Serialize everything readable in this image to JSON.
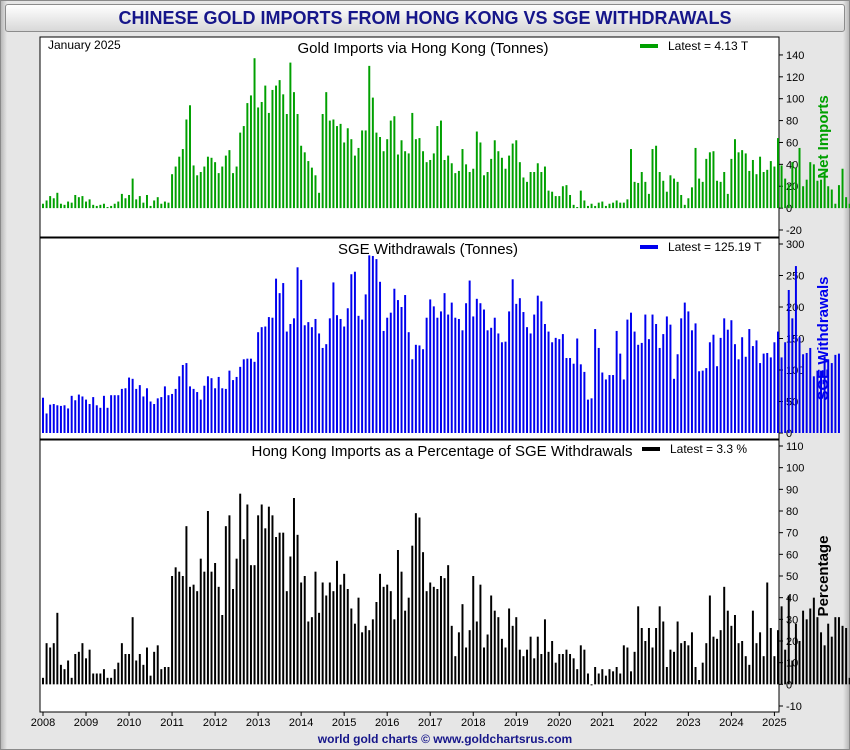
{
  "page": {
    "title": "CHINESE GOLD IMPORTS FROM HONG KONG VS SGE WITHDRAWALS",
    "footer": "world gold charts © www.goldchartsrus.com",
    "date_label": "January 2025"
  },
  "chart_data": [
    {
      "type": "bar",
      "title": "Gold Imports via Hong Kong (Tonnes)",
      "ylabel": "Net Imports",
      "legend_text": "Latest  = 4.13 T",
      "color": "#00a000",
      "legend_color": "#00a000",
      "ylim": [
        -20,
        150
      ],
      "yticks": [
        -20,
        0,
        20,
        40,
        60,
        80,
        100,
        120,
        140
      ],
      "x_start": "2008-01",
      "values": [
        4,
        7,
        11,
        9,
        14,
        4,
        3,
        6,
        5,
        12,
        10,
        11,
        6,
        8,
        3,
        2,
        3,
        4,
        1,
        2,
        4,
        6,
        13,
        9,
        12,
        27,
        8,
        11,
        5,
        12,
        2,
        7,
        10,
        4,
        6,
        5,
        31,
        38,
        47,
        54,
        81,
        94,
        39,
        30,
        33,
        38,
        47,
        46,
        42,
        32,
        38,
        48,
        53,
        32,
        38,
        69,
        75,
        96,
        103,
        137,
        92,
        97,
        112,
        87,
        108,
        112,
        117,
        104,
        86,
        133,
        106,
        86,
        57,
        51,
        43,
        37,
        30,
        14,
        86,
        106,
        80,
        81,
        75,
        77,
        60,
        73,
        63,
        48,
        55,
        71,
        71,
        130,
        101,
        69,
        65,
        52,
        63,
        80,
        84,
        49,
        62,
        52,
        50,
        87,
        63,
        64,
        52,
        42,
        44,
        50,
        75,
        80,
        44,
        48,
        41,
        32,
        34,
        54,
        40,
        33,
        36,
        70,
        60,
        30,
        33,
        45,
        62,
        52,
        46,
        36,
        48,
        59,
        62,
        42,
        28,
        24,
        33,
        33,
        41,
        33,
        38,
        16,
        15,
        11,
        11,
        20,
        21,
        12,
        3,
        1,
        16,
        7,
        2,
        4,
        2,
        5,
        6,
        2,
        4,
        5,
        7,
        5,
        5,
        8,
        54,
        24,
        23,
        33,
        24,
        13,
        54,
        57,
        33,
        25,
        15,
        30,
        27,
        24,
        12,
        3,
        9,
        19,
        55,
        27,
        24,
        45,
        51,
        52,
        25,
        24,
        33,
        13,
        45,
        63,
        51,
        53,
        50,
        34,
        44,
        31,
        47,
        33,
        35,
        43,
        38,
        64,
        39,
        27,
        22,
        42,
        37,
        55,
        20,
        26,
        42,
        40,
        25,
        26,
        32,
        20,
        17,
        4,
        21,
        36,
        10,
        4
      ]
    },
    {
      "type": "bar",
      "title": "SGE Withdrawals (Tonnes)",
      "ylabel": "SGE Withdrawals",
      "legend_text": "Latest  = 125.19 T",
      "color": "#0000ee",
      "legend_color": "#0000ee",
      "ylim": [
        0,
        300
      ],
      "yticks": [
        0,
        50,
        100,
        150,
        200,
        250,
        300
      ],
      "x_start": "2008-01",
      "values": [
        56,
        31,
        45,
        46,
        44,
        43,
        44,
        39,
        59,
        52,
        61,
        58,
        53,
        46,
        57,
        44,
        40,
        59,
        40,
        60,
        60,
        60,
        70,
        71,
        88,
        86,
        70,
        76,
        58,
        71,
        50,
        46,
        55,
        57,
        74,
        60,
        62,
        70,
        90,
        108,
        111,
        74,
        70,
        65,
        53,
        75,
        90,
        87,
        71,
        89,
        71,
        70,
        99,
        84,
        89,
        105,
        117,
        118,
        118,
        113,
        160,
        168,
        169,
        184,
        183,
        245,
        222,
        238,
        161,
        173,
        182,
        263,
        243,
        171,
        176,
        168,
        181,
        158,
        135,
        141,
        182,
        239,
        187,
        181,
        169,
        198,
        252,
        256,
        186,
        180,
        220,
        282,
        281,
        276,
        240,
        162,
        183,
        191,
        229,
        211,
        200,
        219,
        160,
        117,
        140,
        139,
        133,
        183,
        212,
        201,
        183,
        193,
        222,
        188,
        207,
        183,
        181,
        163,
        206,
        242,
        185,
        213,
        206,
        196,
        163,
        167,
        183,
        158,
        144,
        145,
        193,
        244,
        205,
        214,
        192,
        168,
        158,
        188,
        218,
        209,
        173,
        161,
        144,
        151,
        149,
        157,
        119,
        119,
        110,
        150,
        109,
        97,
        53,
        55,
        165,
        135,
        96,
        85,
        92,
        92,
        162,
        126,
        85,
        180,
        191,
        161,
        140,
        143,
        188,
        149,
        188,
        173,
        135,
        157,
        185,
        172,
        86,
        125,
        182,
        207,
        193,
        163,
        174,
        98,
        99,
        103,
        144,
        156,
        106,
        151,
        182,
        164,
        179,
        141,
        117,
        152,
        121,
        165,
        138,
        147,
        111,
        126,
        127,
        120,
        144,
        161,
        120,
        144,
        227,
        182,
        265,
        152,
        125,
        127,
        135,
        90,
        99,
        99,
        121,
        117,
        111,
        124,
        126
      ]
    },
    {
      "type": "bar",
      "title": "Hong Kong Imports as a Percentage of SGE Withdrawals",
      "ylabel": "Percentage",
      "legend_text": "Latest  = 3.3 %",
      "color": "#000000",
      "legend_color": "#000000",
      "ylim": [
        -10,
        110
      ],
      "yticks": [
        -10,
        0,
        10,
        20,
        30,
        40,
        50,
        60,
        70,
        80,
        90,
        100,
        110
      ],
      "x_start": "2008-01",
      "values": [
        3,
        19,
        17,
        19,
        33,
        9,
        7,
        11,
        3,
        14,
        15,
        19,
        12,
        16,
        5,
        5,
        5,
        7,
        3,
        3,
        7,
        10,
        19,
        14,
        14,
        31,
        11,
        14,
        9,
        17,
        4,
        15,
        18,
        7,
        8,
        8,
        50,
        54,
        52,
        50,
        73,
        45,
        46,
        43,
        58,
        52,
        80,
        52,
        56,
        45,
        32,
        73,
        78,
        44,
        58,
        88,
        67,
        83,
        55,
        55,
        78,
        83,
        72,
        82,
        78,
        68,
        70,
        70,
        43,
        59,
        86,
        69,
        47,
        50,
        29,
        31,
        52,
        33,
        47,
        41,
        47,
        43,
        57,
        46,
        51,
        44,
        35,
        28,
        40,
        24,
        27,
        25,
        30,
        38,
        51,
        45,
        46,
        43,
        30,
        62,
        52,
        34,
        40,
        64,
        79,
        77,
        61,
        43,
        47,
        45,
        44,
        50,
        49,
        55,
        27,
        13,
        24,
        37,
        17,
        25,
        50,
        29,
        46,
        17,
        23,
        41,
        34,
        31,
        21,
        17,
        35,
        27,
        31,
        16,
        13,
        16,
        22,
        12,
        22,
        14,
        30,
        15,
        20,
        10,
        14,
        14,
        16,
        14,
        12,
        7,
        18,
        16,
        5,
        0,
        8,
        5,
        7,
        4,
        7,
        6,
        8,
        5,
        18,
        17,
        6,
        15,
        36,
        26,
        20,
        26,
        17,
        26,
        36,
        29,
        8,
        16,
        15,
        29,
        19,
        20,
        18,
        24,
        8,
        2,
        10,
        19,
        41,
        22,
        21,
        25,
        45,
        34,
        27,
        32,
        19,
        20,
        13,
        9,
        34,
        19,
        24,
        13,
        47,
        26,
        13,
        25,
        36,
        16,
        41,
        11,
        28,
        20,
        34,
        30,
        35,
        40,
        31,
        24,
        18,
        28,
        22,
        31,
        31,
        27,
        26,
        3,
        17,
        33,
        8,
        3
      ]
    }
  ],
  "x_axis": {
    "labels": [
      "2008",
      "2009",
      "2010",
      "2011",
      "2012",
      "2013",
      "2014",
      "2015",
      "2016",
      "2017",
      "2018",
      "2019",
      "2020",
      "2021",
      "2022",
      "2023",
      "2024",
      "2025"
    ]
  }
}
